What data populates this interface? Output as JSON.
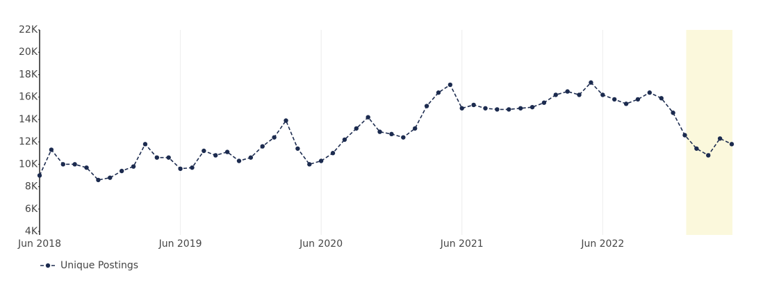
{
  "chart_data": {
    "type": "line",
    "x": [
      "Jun 2018",
      "Jul 2018",
      "Aug 2018",
      "Sep 2018",
      "Oct 2018",
      "Nov 2018",
      "Dec 2018",
      "Jan 2019",
      "Feb 2019",
      "Mar 2019",
      "Apr 2019",
      "May 2019",
      "Jun 2019",
      "Jul 2019",
      "Aug 2019",
      "Sep 2019",
      "Oct 2019",
      "Nov 2019",
      "Dec 2019",
      "Jan 2020",
      "Feb 2020",
      "Mar 2020",
      "Apr 2020",
      "May 2020",
      "Jun 2020",
      "Jul 2020",
      "Aug 2020",
      "Sep 2020",
      "Oct 2020",
      "Nov 2020",
      "Dec 2020",
      "Jan 2021",
      "Feb 2021",
      "Mar 2021",
      "Apr 2021",
      "May 2021",
      "Jun 2021",
      "Jul 2021",
      "Aug 2021",
      "Sep 2021",
      "Oct 2021",
      "Nov 2021",
      "Dec 2021",
      "Jan 2022",
      "Feb 2022",
      "Mar 2022",
      "Apr 2022",
      "May 2022",
      "Jun 2022",
      "Jul 2022",
      "Aug 2022",
      "Sep 2022",
      "Oct 2022",
      "Nov 2022",
      "Dec 2022",
      "Jan 2023",
      "Feb 2023",
      "Mar 2023",
      "Apr 2023",
      "May 2023"
    ],
    "series": [
      {
        "name": "Unique Postings",
        "color": "#1c2b4f",
        "values": [
          9000,
          11300,
          10000,
          10000,
          9700,
          8600,
          8800,
          9400,
          9800,
          11800,
          10600,
          10600,
          9600,
          9700,
          11200,
          10800,
          11100,
          10300,
          10600,
          11600,
          12400,
          13900,
          11400,
          10000,
          10300,
          11000,
          12200,
          13200,
          14200,
          12900,
          12700,
          12400,
          13200,
          15200,
          16400,
          17100,
          15000,
          15300,
          15000,
          14900,
          14900,
          15000,
          15100,
          15500,
          16200,
          16500,
          16200,
          17300,
          16200,
          15800,
          15400,
          15800,
          16400,
          15900,
          14600,
          12600,
          11400,
          10800,
          12300,
          11800
        ]
      }
    ],
    "ylim": [
      4000,
      22000
    ],
    "yticks": [
      {
        "value": 4000,
        "label": "4K"
      },
      {
        "value": 6000,
        "label": "6K"
      },
      {
        "value": 8000,
        "label": "8K"
      },
      {
        "value": 10000,
        "label": "10K"
      },
      {
        "value": 12000,
        "label": "12K"
      },
      {
        "value": 14000,
        "label": "14K"
      },
      {
        "value": 16000,
        "label": "16K"
      },
      {
        "value": 18000,
        "label": "18K"
      },
      {
        "value": 20000,
        "label": "20K"
      },
      {
        "value": 22000,
        "label": "22K"
      }
    ],
    "xticks": [
      "Jun 2018",
      "Jun 2019",
      "Jun 2020",
      "Jun 2021",
      "Jun 2022"
    ],
    "grid": true,
    "highlight": {
      "from": "Jan 2023",
      "to": "May 2023",
      "color": "#fbf8dc"
    },
    "legend": "bottom-left"
  }
}
